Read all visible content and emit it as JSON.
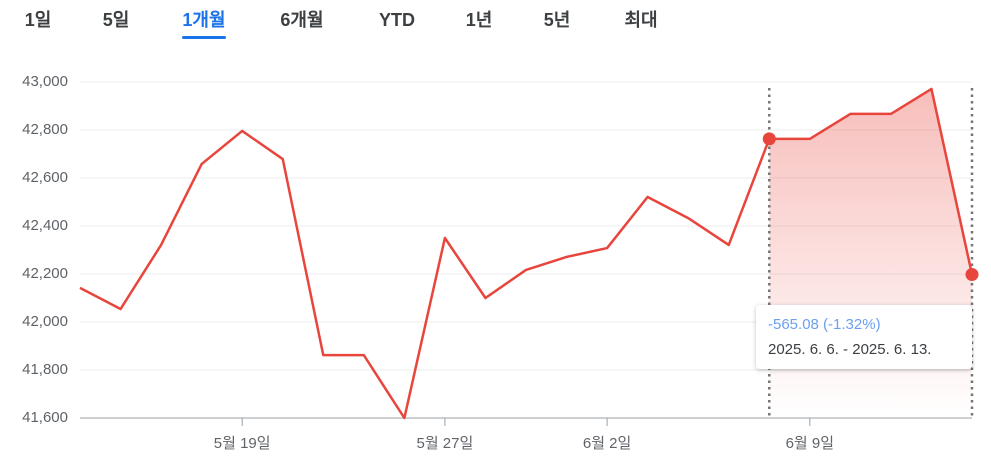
{
  "tabs": [
    "1일",
    "5일",
    "1개월",
    "6개월",
    "YTD",
    "1년",
    "5년",
    "최대"
  ],
  "selected_tab": 2,
  "chart_data": {
    "type": "line",
    "categories": [
      null,
      null,
      null,
      null,
      "5월 19일",
      null,
      null,
      null,
      null,
      "5월 27일",
      null,
      null,
      null,
      "6월 2일",
      null,
      null,
      null,
      null,
      "6월 9일",
      null,
      null,
      null,
      null
    ],
    "series": [
      {
        "color": "#e8453c",
        "values": [
          42142,
          42054,
          42321,
          42658,
          42796,
          42679,
          41862,
          41862,
          41600,
          42350,
          42100,
          42217,
          42271,
          42308,
          42521,
          42433,
          42321,
          42763,
          42763,
          42867,
          42867,
          42971,
          42198
        ]
      }
    ],
    "ylim": [
      41600,
      43000
    ],
    "yticks": [
      {
        "value": 41600,
        "label": "41,600"
      },
      {
        "value": 41800,
        "label": "41,800"
      },
      {
        "value": 42000,
        "label": "42,000"
      },
      {
        "value": 42200,
        "label": "42,200"
      },
      {
        "value": 42400,
        "label": "42,400"
      },
      {
        "value": 42600,
        "label": "42,600"
      },
      {
        "value": 42800,
        "label": "42,800"
      },
      {
        "value": 43000,
        "label": "43,000"
      }
    ],
    "grid": true,
    "highlight": {
      "start": 17,
      "end": 22,
      "change": "-565.08 (-1.32%)",
      "range": "2025. 6. 6. - 2025. 6. 13."
    }
  }
}
